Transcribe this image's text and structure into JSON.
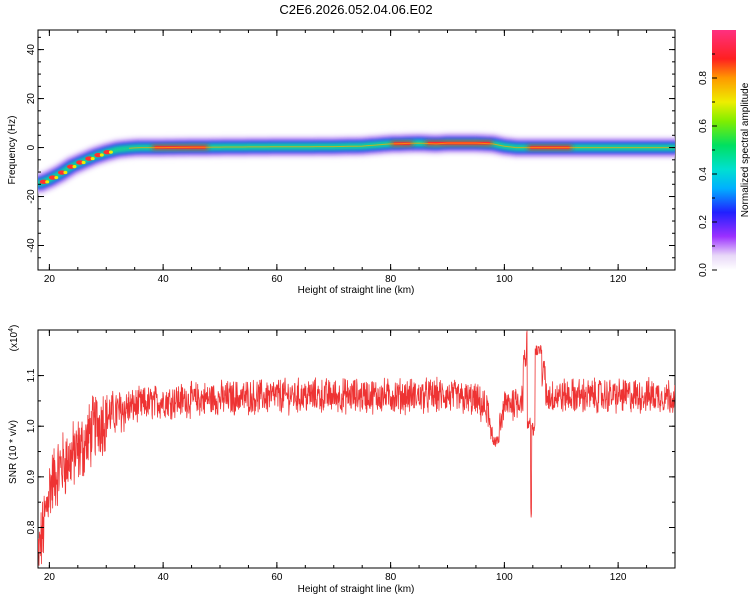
{
  "title": "C2E6.2026.052.04.06.E02",
  "chart_data": [
    {
      "type": "heatmap",
      "xlabel": "Height of straight line (km)",
      "ylabel": "Frequency (Hz)",
      "xlim": [
        18,
        130
      ],
      "ylim": [
        -50,
        48
      ],
      "xticks": [
        20,
        40,
        60,
        80,
        100,
        120
      ],
      "yticks": [
        -40,
        -20,
        0,
        20,
        40
      ],
      "ridge": [
        [
          18.5,
          -14.5
        ],
        [
          20,
          -13
        ],
        [
          22,
          -10.5
        ],
        [
          24,
          -7.5
        ],
        [
          26,
          -5.5
        ],
        [
          28,
          -3.5
        ],
        [
          30,
          -2
        ],
        [
          32,
          -0.8
        ],
        [
          34,
          -0.3
        ],
        [
          36,
          0
        ],
        [
          40,
          0
        ],
        [
          50,
          0.2
        ],
        [
          60,
          0.3
        ],
        [
          70,
          0.4
        ],
        [
          75,
          0.6
        ],
        [
          80,
          1.5
        ],
        [
          85,
          1.8
        ],
        [
          88,
          1.5
        ],
        [
          90,
          1.8
        ],
        [
          95,
          1.8
        ],
        [
          98,
          1.5
        ],
        [
          100,
          0.5
        ],
        [
          102,
          0
        ],
        [
          110,
          0
        ],
        [
          120,
          0
        ],
        [
          130,
          0
        ]
      ],
      "hotspots": [
        [
          38,
          48
        ],
        [
          80,
          84
        ],
        [
          86,
          98
        ],
        [
          104,
          112
        ]
      ]
    },
    {
      "type": "line",
      "xlabel": "Height of straight line (km)",
      "ylabel": "SNR (10 * v/v)",
      "scale_label": "(x10",
      "scale_exp": "4",
      "xlim": [
        18,
        130
      ],
      "ylim": [
        0.72,
        1.19
      ],
      "xticks": [
        20,
        40,
        60,
        80,
        100,
        120
      ],
      "yticks": [
        0.8,
        0.9,
        1.0,
        1.1
      ],
      "ytick_labels": [
        "0.8",
        "0.9",
        "1.0",
        "1.1"
      ],
      "envelope": [
        [
          18,
          0.74
        ],
        [
          19,
          0.8
        ],
        [
          20,
          0.88
        ],
        [
          22,
          0.92
        ],
        [
          24,
          0.94
        ],
        [
          26,
          0.96
        ],
        [
          28,
          1.0
        ],
        [
          30,
          1.02
        ],
        [
          35,
          1.04
        ],
        [
          40,
          1.05
        ],
        [
          50,
          1.055
        ],
        [
          60,
          1.06
        ],
        [
          70,
          1.06
        ],
        [
          80,
          1.06
        ],
        [
          90,
          1.06
        ],
        [
          95,
          1.05
        ],
        [
          98,
          1.02
        ],
        [
          100,
          1.04
        ],
        [
          104,
          1.06
        ],
        [
          106,
          1.06
        ],
        [
          110,
          1.06
        ],
        [
          120,
          1.06
        ],
        [
          130,
          1.06
        ]
      ],
      "noise_amplitude": 0.03,
      "events": [
        [
          98.5,
          0.97
        ],
        [
          104.5,
          1.19
        ],
        [
          105.2,
          0.83
        ],
        [
          106,
          1.15
        ]
      ],
      "series_color": "#ee3333"
    }
  ],
  "colorbar": {
    "label": "Normalized spectral amplitude",
    "ticks": [
      0.0,
      0.2,
      0.4,
      0.6,
      0.8
    ],
    "tick_labels": [
      "0.0",
      "0.2",
      "0.4",
      "0.6",
      "0.8"
    ],
    "range": [
      0,
      1
    ]
  }
}
